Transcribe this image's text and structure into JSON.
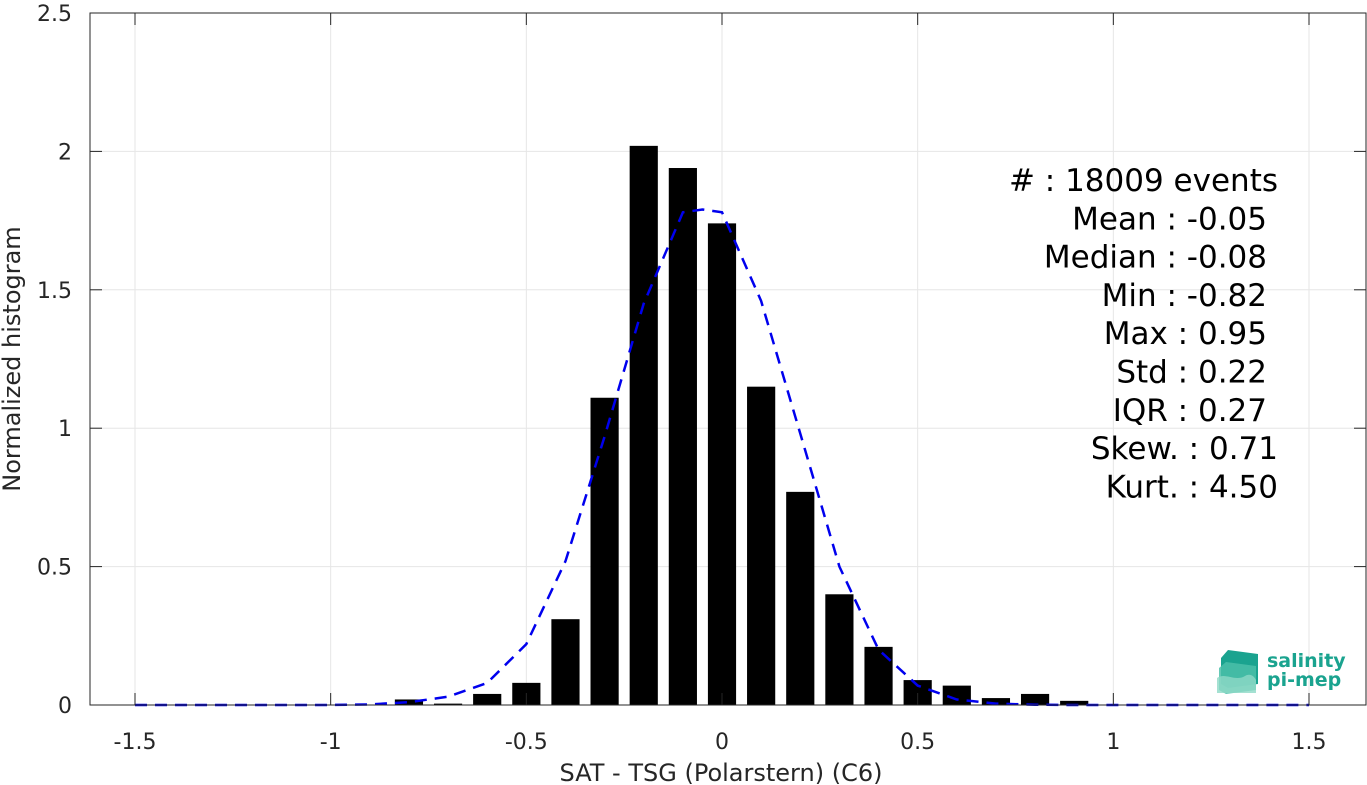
{
  "chart_data": {
    "type": "bar",
    "xlabel": "SAT - TSG (Polarstern) (C6)",
    "ylabel": "Normalized histogram",
    "xlim": [
      -1.5,
      1.5
    ],
    "ylim": [
      0,
      2.5
    ],
    "xticks": [
      -1.5,
      -1,
      -0.5,
      0,
      0.5,
      1,
      1.5
    ],
    "xtick_labels": [
      "-1.5",
      "-1",
      "-0.5",
      "0",
      "0.5",
      "1",
      "1.5"
    ],
    "yticks": [
      0,
      0.5,
      1,
      1.5,
      2,
      2.5
    ],
    "ytick_labels": [
      "0",
      "0.5",
      "1",
      "1.5",
      "2",
      "2.5"
    ],
    "grid": true,
    "bar_color": "#000000",
    "bars": {
      "x": [
        -0.8,
        -0.7,
        -0.6,
        -0.5,
        -0.4,
        -0.3,
        -0.2,
        -0.1,
        0.0,
        0.1,
        0.2,
        0.3,
        0.4,
        0.5,
        0.6,
        0.7,
        0.8,
        0.9
      ],
      "values": [
        0.02,
        0.005,
        0.04,
        0.08,
        0.31,
        1.11,
        2.02,
        1.94,
        1.74,
        1.15,
        0.77,
        0.4,
        0.21,
        0.09,
        0.07,
        0.025,
        0.04,
        0.015
      ]
    },
    "fit_curve": {
      "style": "dashed",
      "color": "#0000ee",
      "x": [
        -1.5,
        -1.4,
        -1.3,
        -1.2,
        -1.1,
        -1.0,
        -0.9,
        -0.8,
        -0.7,
        -0.6,
        -0.5,
        -0.4,
        -0.3,
        -0.2,
        -0.1,
        -0.05,
        0.0,
        0.1,
        0.2,
        0.3,
        0.4,
        0.5,
        0.6,
        0.7,
        0.8,
        0.9,
        1.0,
        1.1,
        1.2,
        1.3,
        1.4,
        1.5
      ],
      "y": [
        0,
        0,
        0,
        0,
        0,
        0,
        0.002,
        0.01,
        0.03,
        0.08,
        0.22,
        0.52,
        0.97,
        1.45,
        1.78,
        1.79,
        1.78,
        1.46,
        0.98,
        0.5,
        0.2,
        0.07,
        0.02,
        0.005,
        0.001,
        0,
        0,
        0,
        0,
        0,
        0,
        0
      ]
    },
    "stats": [
      "#  : 18009 events",
      "Mean : -0.05",
      "Median : -0.08",
      "Min : -0.82",
      "Max : 0.95",
      "Std : 0.22",
      "IQR : 0.27",
      "Skew. : 0.71",
      "Kurt. : 4.50"
    ]
  },
  "logo": {
    "line1": "salinity",
    "line2": "pi-mep",
    "color": "#1aa38f"
  }
}
